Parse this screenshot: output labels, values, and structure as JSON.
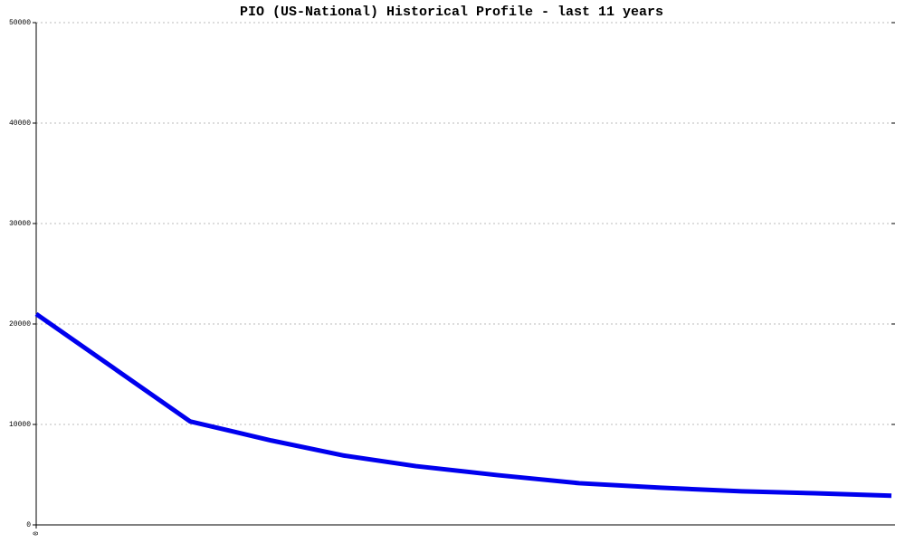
{
  "chart_data": {
    "type": "line",
    "title": "PIO (US-National) Historical Profile - last 11 years",
    "x": [
      0,
      18,
      27.5,
      36,
      44.4,
      54,
      63.5,
      73,
      82.5,
      91,
      100
    ],
    "series": [
      {
        "color": "#0000ee",
        "values": [
          21000,
          10300,
          8400,
          6900,
          5850,
          4950,
          4150,
          3700,
          3350,
          3150,
          2900
        ]
      }
    ],
    "xlim": [
      0,
      100
    ],
    "xticks": [
      0
    ],
    "ylim": [
      0,
      50000
    ],
    "yticks": [
      0,
      10000,
      20000,
      30000,
      40000,
      50000
    ],
    "grid": true
  }
}
